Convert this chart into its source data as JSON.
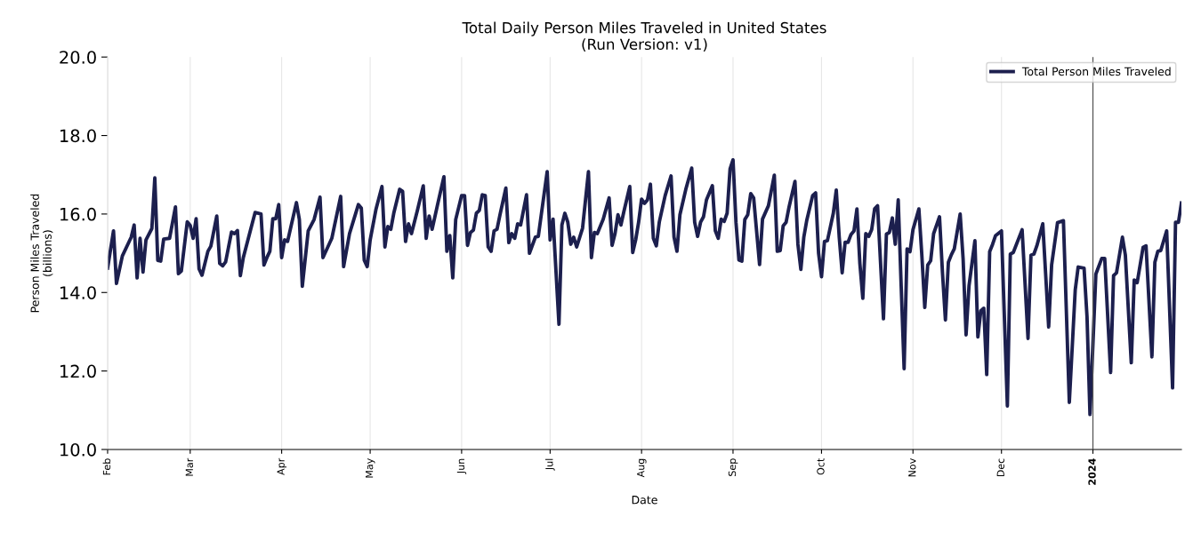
{
  "chart_data": {
    "type": "line",
    "title": "Total Daily Person Miles Traveled in United States\n(Run Version: v1)",
    "xlabel": "Date",
    "ylabel": "Person Miles Traveled\n(billions)",
    "x": [
      "2023-02-01",
      "2023-02-03",
      "2023-02-04",
      "2023-02-06",
      "2023-02-09",
      "2023-02-10",
      "2023-02-11",
      "2023-02-12",
      "2023-02-13",
      "2023-02-14",
      "2023-02-16",
      "2023-02-17",
      "2023-02-18",
      "2023-02-19",
      "2023-02-20",
      "2023-02-22",
      "2023-02-24",
      "2023-02-25",
      "2023-02-26",
      "2023-02-28",
      "2023-03-01",
      "2023-03-02",
      "2023-03-03",
      "2023-03-04",
      "2023-03-05",
      "2023-03-07",
      "2023-03-08",
      "2023-03-10",
      "2023-03-11",
      "2023-03-12",
      "2023-03-13",
      "2023-03-15",
      "2023-03-16",
      "2023-03-17",
      "2023-03-18",
      "2023-03-19",
      "2023-03-23",
      "2023-03-25",
      "2023-03-26",
      "2023-03-27",
      "2023-03-28",
      "2023-03-29",
      "2023-03-30",
      "2023-03-31",
      "2023-04-01",
      "2023-04-02",
      "2023-04-03",
      "2023-04-06",
      "2023-04-07",
      "2023-04-08",
      "2023-04-10",
      "2023-04-12",
      "2023-04-14",
      "2023-04-15",
      "2023-04-18",
      "2023-04-21",
      "2023-04-22",
      "2023-04-24",
      "2023-04-27",
      "2023-04-28",
      "2023-04-29",
      "2023-04-30",
      "2023-05-01",
      "2023-05-03",
      "2023-05-05",
      "2023-05-06",
      "2023-05-07",
      "2023-05-08",
      "2023-05-09",
      "2023-05-11",
      "2023-05-12",
      "2023-05-13",
      "2023-05-14",
      "2023-05-15",
      "2023-05-17",
      "2023-05-19",
      "2023-05-20",
      "2023-05-21",
      "2023-05-22",
      "2023-05-24",
      "2023-05-26",
      "2023-05-27",
      "2023-05-28",
      "2023-05-29",
      "2023-05-30",
      "2023-06-01",
      "2023-06-02",
      "2023-06-03",
      "2023-06-04",
      "2023-06-05",
      "2023-06-06",
      "2023-06-07",
      "2023-06-08",
      "2023-06-09",
      "2023-06-10",
      "2023-06-11",
      "2023-06-12",
      "2023-06-13",
      "2023-06-14",
      "2023-06-16",
      "2023-06-17",
      "2023-06-18",
      "2023-06-19",
      "2023-06-20",
      "2023-06-21",
      "2023-06-23",
      "2023-06-24",
      "2023-06-26",
      "2023-06-27",
      "2023-06-30",
      "2023-07-01",
      "2023-07-02",
      "2023-07-04",
      "2023-07-05",
      "2023-07-06",
      "2023-07-07",
      "2023-07-08",
      "2023-07-09",
      "2023-07-10",
      "2023-07-12",
      "2023-07-14",
      "2023-07-15",
      "2023-07-16",
      "2023-07-17",
      "2023-07-19",
      "2023-07-21",
      "2023-07-22",
      "2023-07-23",
      "2023-07-24",
      "2023-07-25",
      "2023-07-26",
      "2023-07-28",
      "2023-07-29",
      "2023-07-30",
      "2023-07-31",
      "2023-08-01",
      "2023-08-02",
      "2023-08-03",
      "2023-08-04",
      "2023-08-05",
      "2023-08-06",
      "2023-08-07",
      "2023-08-09",
      "2023-08-11",
      "2023-08-12",
      "2023-08-13",
      "2023-08-14",
      "2023-08-16",
      "2023-08-18",
      "2023-08-19",
      "2023-08-20",
      "2023-08-21",
      "2023-08-22",
      "2023-08-23",
      "2023-08-25",
      "2023-08-26",
      "2023-08-27",
      "2023-08-28",
      "2023-08-29",
      "2023-08-30",
      "2023-08-31",
      "2023-09-01",
      "2023-09-02",
      "2023-09-03",
      "2023-09-04",
      "2023-09-05",
      "2023-09-06",
      "2023-09-07",
      "2023-09-08",
      "2023-09-10",
      "2023-09-11",
      "2023-09-13",
      "2023-09-15",
      "2023-09-16",
      "2023-09-17",
      "2023-09-18",
      "2023-09-19",
      "2023-09-20",
      "2023-09-22",
      "2023-09-23",
      "2023-09-24",
      "2023-09-25",
      "2023-09-26",
      "2023-09-28",
      "2023-09-29",
      "2023-09-30",
      "2023-10-01",
      "2023-10-02",
      "2023-10-03",
      "2023-10-05",
      "2023-10-06",
      "2023-10-07",
      "2023-10-08",
      "2023-10-09",
      "2023-10-10",
      "2023-10-11",
      "2023-10-12",
      "2023-10-13",
      "2023-10-14",
      "2023-10-15",
      "2023-10-16",
      "2023-10-17",
      "2023-10-18",
      "2023-10-19",
      "2023-10-20",
      "2023-10-22",
      "2023-10-23",
      "2023-10-24",
      "2023-10-25",
      "2023-10-26",
      "2023-10-27",
      "2023-10-28",
      "2023-10-29",
      "2023-10-30",
      "2023-10-31",
      "2023-11-01",
      "2023-11-03",
      "2023-11-04",
      "2023-11-05",
      "2023-11-06",
      "2023-11-07",
      "2023-11-08",
      "2023-11-10",
      "2023-11-11",
      "2023-11-12",
      "2023-11-13",
      "2023-11-14",
      "2023-11-15",
      "2023-11-17",
      "2023-11-18",
      "2023-11-19",
      "2023-11-20",
      "2023-11-22",
      "2023-11-23",
      "2023-11-24",
      "2023-11-25",
      "2023-11-26",
      "2023-11-27",
      "2023-11-28",
      "2023-11-29",
      "2023-12-01",
      "2023-12-03",
      "2023-12-04",
      "2023-12-05",
      "2023-12-08",
      "2023-12-10",
      "2023-12-11",
      "2023-12-12",
      "2023-12-13",
      "2023-12-15",
      "2023-12-17",
      "2023-12-18",
      "2023-12-20",
      "2023-12-22",
      "2023-12-24",
      "2023-12-26",
      "2023-12-27",
      "2023-12-29",
      "2023-12-30",
      "2023-12-31",
      "2024-01-02",
      "2024-01-04",
      "2024-01-05",
      "2024-01-07",
      "2024-01-08",
      "2024-01-09",
      "2024-01-11",
      "2024-01-12",
      "2024-01-14",
      "2024-01-15",
      "2024-01-16",
      "2024-01-18",
      "2024-01-19",
      "2024-01-21",
      "2024-01-22",
      "2024-01-23",
      "2024-01-24",
      "2024-01-26",
      "2024-01-28",
      "2024-01-29",
      "2024-01-30",
      "2024-01-31"
    ],
    "series": [
      {
        "name": "Total Person Miles Traveled",
        "color": "#1c1f4e",
        "values": [
          14.62,
          15.57,
          14.23,
          14.93,
          15.41,
          15.72,
          14.37,
          15.38,
          14.52,
          15.34,
          15.63,
          16.92,
          14.82,
          14.8,
          15.36,
          15.38,
          16.18,
          14.48,
          14.55,
          15.8,
          15.71,
          15.38,
          15.88,
          14.6,
          14.44,
          15.05,
          15.18,
          15.95,
          14.74,
          14.68,
          14.78,
          15.54,
          15.5,
          15.58,
          14.43,
          14.89,
          16.04,
          16.0,
          14.7,
          14.89,
          15.05,
          15.88,
          15.88,
          16.24,
          14.89,
          15.34,
          15.3,
          16.29,
          15.86,
          14.16,
          15.57,
          15.86,
          16.43,
          14.89,
          15.38,
          16.45,
          14.66,
          15.5,
          16.24,
          16.15,
          14.82,
          14.66,
          15.34,
          16.13,
          16.7,
          15.16,
          15.68,
          15.61,
          16.02,
          16.63,
          16.58,
          15.3,
          15.75,
          15.5,
          16.09,
          16.72,
          15.38,
          15.95,
          15.61,
          16.29,
          16.95,
          15.05,
          15.45,
          14.37,
          15.86,
          16.47,
          16.47,
          15.2,
          15.53,
          15.59,
          16.02,
          16.09,
          16.49,
          16.47,
          15.16,
          15.05,
          15.57,
          15.61,
          15.98,
          16.66,
          15.27,
          15.5,
          15.38,
          15.75,
          15.72,
          16.49,
          15.0,
          15.41,
          15.43,
          17.08,
          15.34,
          15.87,
          13.19,
          15.72,
          16.02,
          15.79,
          15.23,
          15.41,
          15.16,
          15.64,
          17.08,
          14.89,
          15.53,
          15.5,
          15.87,
          16.41,
          15.2,
          15.5,
          15.98,
          15.72,
          16.06,
          16.7,
          15.02,
          15.34,
          15.79,
          16.38,
          16.27,
          16.36,
          16.76,
          15.38,
          15.19,
          15.79,
          16.47,
          16.97,
          15.41,
          15.05,
          15.98,
          16.63,
          17.17,
          15.79,
          15.43,
          15.79,
          15.93,
          16.36,
          16.72,
          15.57,
          15.38,
          15.87,
          15.81,
          16.02,
          17.15,
          17.38,
          15.79,
          14.83,
          14.8,
          15.86,
          15.98,
          16.52,
          16.41,
          14.71,
          15.87,
          16.21,
          16.99,
          15.05,
          15.07,
          15.7,
          15.79,
          16.18,
          16.83,
          15.23,
          14.59,
          15.41,
          15.84,
          16.47,
          16.54,
          15.0,
          14.4,
          15.3,
          15.32,
          16.02,
          16.61,
          15.41,
          14.5,
          15.28,
          15.28,
          15.48,
          15.57,
          16.13,
          14.74,
          13.85,
          15.5,
          15.43,
          15.6,
          16.13,
          16.21,
          13.33,
          15.49,
          15.53,
          15.9,
          15.23,
          16.36,
          14.17,
          12.06,
          15.11,
          15.04,
          15.6,
          16.13,
          14.96,
          13.62,
          14.7,
          14.81,
          15.5,
          15.93,
          14.51,
          13.3,
          14.77,
          14.96,
          15.11,
          16.0,
          14.85,
          12.92,
          14.17,
          15.32,
          12.87,
          13.53,
          13.6,
          11.91,
          15.04,
          15.23,
          15.45,
          15.57,
          11.11,
          14.98,
          15.02,
          15.6,
          12.83,
          14.95,
          14.98,
          15.19,
          15.75,
          13.12,
          14.7,
          15.78,
          15.83,
          11.2,
          14.06,
          14.65,
          14.62,
          13.38,
          10.89,
          14.47,
          14.87,
          14.87,
          11.96,
          14.43,
          14.5,
          15.41,
          14.95,
          12.21,
          14.32,
          14.25,
          15.15,
          15.19,
          12.36,
          14.77,
          15.05,
          15.07,
          15.57,
          11.57,
          15.79,
          15.79,
          16.28
        ]
      }
    ],
    "xlim": [
      "2023-02-01",
      "2024-01-31"
    ],
    "xticks": [
      {
        "value": "2023-02-01",
        "label": "Feb"
      },
      {
        "value": "2023-03-01",
        "label": "Mar"
      },
      {
        "value": "2023-04-01",
        "label": "Apr"
      },
      {
        "value": "2023-05-01",
        "label": "May"
      },
      {
        "value": "2023-06-01",
        "label": "Jun"
      },
      {
        "value": "2023-07-01",
        "label": "Jul"
      },
      {
        "value": "2023-08-01",
        "label": "Aug"
      },
      {
        "value": "2023-09-01",
        "label": "Sep"
      },
      {
        "value": "2023-10-01",
        "label": "Oct"
      },
      {
        "value": "2023-11-01",
        "label": "Nov"
      },
      {
        "value": "2023-12-01",
        "label": "Dec"
      },
      {
        "value": "2024-01-01",
        "label": "2024"
      }
    ],
    "ylim": [
      10,
      20
    ],
    "yticks": [
      {
        "value": 10,
        "label": "10.0"
      },
      {
        "value": 12,
        "label": "12.0"
      },
      {
        "value": 14,
        "label": "14.0"
      },
      {
        "value": 16,
        "label": "16.0"
      },
      {
        "value": 18,
        "label": "18.0"
      },
      {
        "value": 20,
        "label": "20.0"
      }
    ],
    "ref_lines": [
      {
        "axis": "x",
        "value": "2024-01-01",
        "color": "#555555"
      }
    ],
    "grid": "x",
    "legend": "top right",
    "marker": "none",
    "line_style": "solid"
  }
}
